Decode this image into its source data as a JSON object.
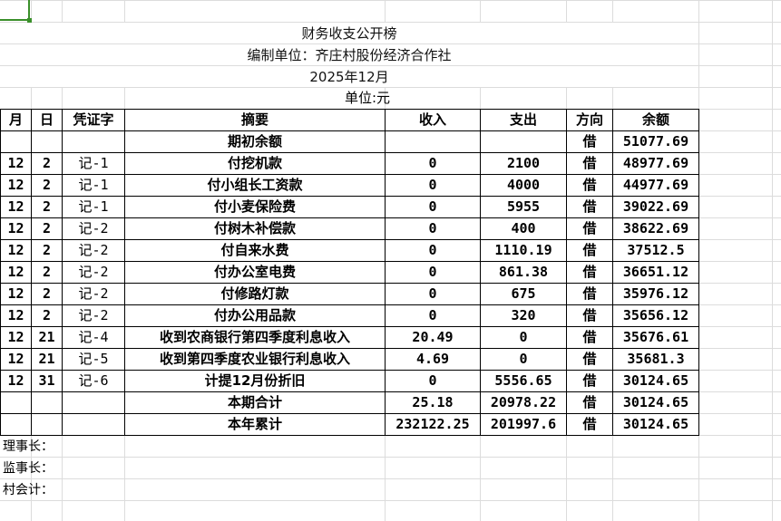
{
  "title": "财务收支公开榜",
  "org": "编制单位：齐庄村股份经济合作社",
  "period": "2025年12月",
  "unit": "单位:元",
  "headers": [
    "月",
    "日",
    "凭证字",
    "摘要",
    "收入",
    "支出",
    "方向",
    "余额"
  ],
  "rows": [
    [
      "",
      "",
      "",
      "期初余额",
      "",
      "",
      "借",
      "51077.69"
    ],
    [
      "12",
      "2",
      "记-1",
      "付挖机款",
      "0",
      "2100",
      "借",
      "48977.69"
    ],
    [
      "12",
      "2",
      "记-1",
      "付小组长工资款",
      "0",
      "4000",
      "借",
      "44977.69"
    ],
    [
      "12",
      "2",
      "记-1",
      "付小麦保险费",
      "0",
      "5955",
      "借",
      "39022.69"
    ],
    [
      "12",
      "2",
      "记-2",
      "付树木补偿款",
      "0",
      "400",
      "借",
      "38622.69"
    ],
    [
      "12",
      "2",
      "记-2",
      "付自来水费",
      "0",
      "1110.19",
      "借",
      "37512.5"
    ],
    [
      "12",
      "2",
      "记-2",
      "付办公室电费",
      "0",
      "861.38",
      "借",
      "36651.12"
    ],
    [
      "12",
      "2",
      "记-2",
      "付修路灯款",
      "0",
      "675",
      "借",
      "35976.12"
    ],
    [
      "12",
      "2",
      "记-2",
      "付办公用品款",
      "0",
      "320",
      "借",
      "35656.12"
    ],
    [
      "12",
      "21",
      "记-4",
      "收到农商银行第四季度利息收入",
      "20.49",
      "0",
      "借",
      "35676.61"
    ],
    [
      "12",
      "21",
      "记-5",
      "收到第四季度农业银行利息收入",
      "4.69",
      "0",
      "借",
      "35681.3"
    ],
    [
      "12",
      "31",
      "记-6",
      "计提12月份折旧",
      "0",
      "5556.65",
      "借",
      "30124.65"
    ],
    [
      "",
      "",
      "",
      "本期合计",
      "25.18",
      "20978.22",
      "借",
      "30124.65"
    ],
    [
      "",
      "",
      "",
      "本年累计",
      "232122.25",
      "201997.6",
      "借",
      "30124.65"
    ]
  ],
  "footer": [
    "理事长：",
    "监事长：",
    "村会计："
  ]
}
